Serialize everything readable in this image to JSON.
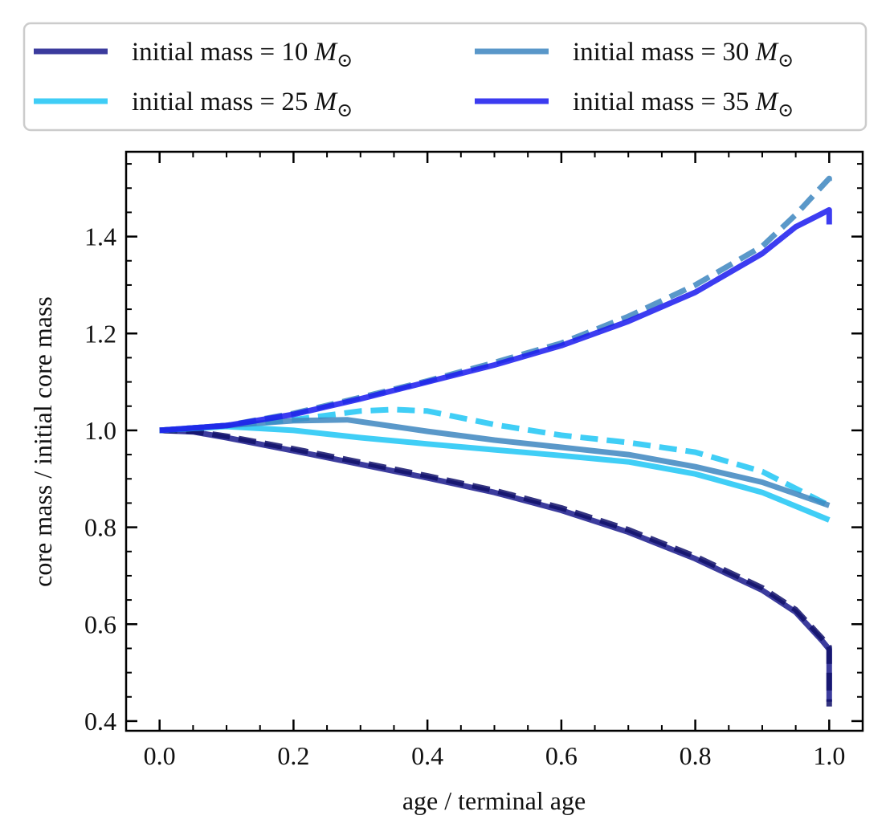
{
  "chart_data": {
    "type": "line",
    "title": "",
    "xlabel": "age / terminal age",
    "ylabel": "core mass / initial core mass",
    "xlim": [
      -0.05,
      1.05
    ],
    "ylim": [
      0.38,
      1.575
    ],
    "xticks": [
      0.0,
      0.2,
      0.4,
      0.6,
      0.8,
      1.0
    ],
    "xtick_labels": [
      "0.0",
      "0.2",
      "0.4",
      "0.6",
      "0.8",
      "1.0"
    ],
    "yticks": [
      0.4,
      0.6,
      0.8,
      1.0,
      1.2,
      1.4
    ],
    "ytick_labels": [
      "0.4",
      "0.6",
      "0.8",
      "1.0",
      "1.2",
      "1.4"
    ],
    "grid": false,
    "legend": {
      "placement": "top (above plot)",
      "columns": 2,
      "entries": [
        {
          "label_prefix": "initial mass = 10 ",
          "unit_symbol": "M",
          "unit_sub": "⊙",
          "color": "#1a1a8c"
        },
        {
          "label_prefix": "initial mass = 25 ",
          "unit_symbol": "M",
          "unit_sub": "⊙",
          "color": "#1ec5f5"
        },
        {
          "label_prefix": "initial mass = 30 ",
          "unit_symbol": "M",
          "unit_sub": "⊙",
          "color": "#3d86c0"
        },
        {
          "label_prefix": "initial mass = 35 ",
          "unit_symbol": "M",
          "unit_sub": "⊙",
          "color": "#1a1aee"
        }
      ]
    },
    "series": [
      {
        "name": "initial mass = 10 M⊙ (solid)",
        "color": "#1a1a8c",
        "style": "solid",
        "x": [
          0.0,
          0.05,
          0.1,
          0.2,
          0.3,
          0.4,
          0.5,
          0.6,
          0.7,
          0.8,
          0.9,
          0.95,
          0.99,
          1.0,
          1.0
        ],
        "y": [
          1.0,
          0.997,
          0.985,
          0.958,
          0.93,
          0.902,
          0.872,
          0.835,
          0.79,
          0.735,
          0.67,
          0.625,
          0.565,
          0.548,
          0.44
        ]
      },
      {
        "name": "initial mass = 10 M⊙ (dashed)",
        "color": "#10106a",
        "style": "dashed",
        "x": [
          0.0,
          0.05,
          0.1,
          0.2,
          0.3,
          0.4,
          0.5,
          0.6,
          0.7,
          0.8,
          0.9,
          0.95,
          0.99,
          1.0,
          1.0
        ],
        "y": [
          1.0,
          0.998,
          0.988,
          0.962,
          0.934,
          0.906,
          0.876,
          0.84,
          0.795,
          0.74,
          0.675,
          0.63,
          0.57,
          0.553,
          0.43
        ]
      },
      {
        "name": "initial mass = 25 M⊙ (solid)",
        "color": "#1ec5f5",
        "style": "solid",
        "x": [
          0.0,
          0.1,
          0.2,
          0.3,
          0.4,
          0.5,
          0.6,
          0.7,
          0.8,
          0.9,
          1.0
        ],
        "y": [
          1.0,
          1.008,
          1.0,
          0.985,
          0.972,
          0.96,
          0.948,
          0.935,
          0.91,
          0.872,
          0.815
        ]
      },
      {
        "name": "initial mass = 25 M⊙ (dashed)",
        "color": "#1ec5f5",
        "style": "dashed",
        "x": [
          0.0,
          0.1,
          0.2,
          0.3,
          0.35,
          0.4,
          0.5,
          0.6,
          0.7,
          0.8,
          0.9,
          1.0
        ],
        "y": [
          1.0,
          1.01,
          1.022,
          1.04,
          1.043,
          1.04,
          1.012,
          0.99,
          0.975,
          0.955,
          0.915,
          0.845
        ]
      },
      {
        "name": "initial mass = 30 M⊙ (solid)",
        "color": "#3d86c0",
        "style": "solid",
        "x": [
          0.0,
          0.1,
          0.2,
          0.28,
          0.35,
          0.4,
          0.5,
          0.6,
          0.7,
          0.8,
          0.9,
          1.0
        ],
        "y": [
          1.0,
          1.01,
          1.02,
          1.022,
          1.008,
          0.998,
          0.98,
          0.965,
          0.95,
          0.925,
          0.893,
          0.845
        ]
      },
      {
        "name": "initial mass = 30 M⊙ (dashed)",
        "color": "#3d86c0",
        "style": "dashed",
        "x": [
          0.0,
          0.1,
          0.2,
          0.3,
          0.4,
          0.5,
          0.6,
          0.7,
          0.8,
          0.9,
          0.95,
          1.0,
          1.0
        ],
        "y": [
          1.0,
          1.01,
          1.035,
          1.068,
          1.102,
          1.14,
          1.18,
          1.235,
          1.3,
          1.38,
          1.445,
          1.52,
          1.51
        ]
      },
      {
        "name": "initial mass = 35 M⊙ (solid)",
        "color": "#1a1aee",
        "style": "solid",
        "x": [
          0.0,
          0.1,
          0.2,
          0.3,
          0.4,
          0.5,
          0.6,
          0.7,
          0.8,
          0.9,
          0.95,
          1.0,
          1.0
        ],
        "y": [
          1.0,
          1.01,
          1.033,
          1.065,
          1.1,
          1.135,
          1.175,
          1.225,
          1.285,
          1.365,
          1.42,
          1.455,
          1.425
        ]
      }
    ]
  }
}
